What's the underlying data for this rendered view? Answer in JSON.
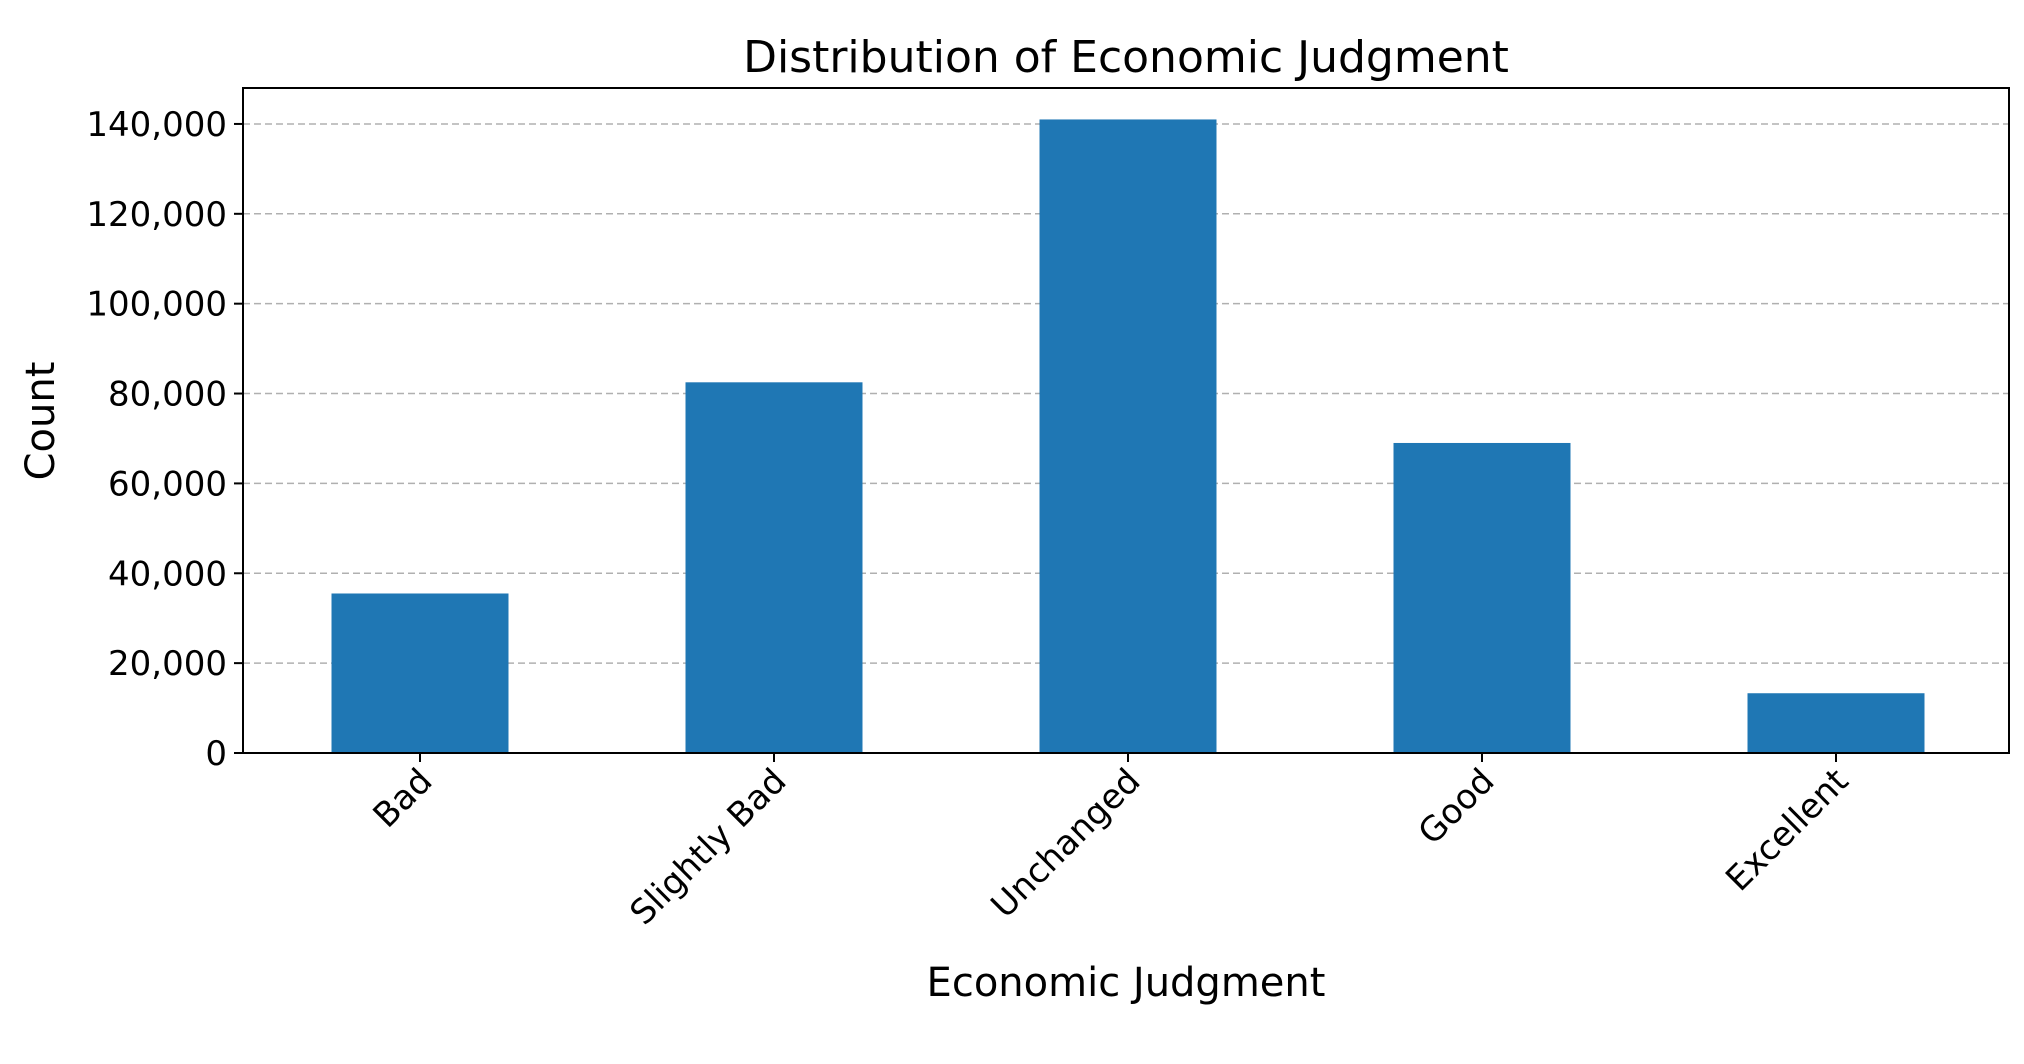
{
  "chart_data": {
    "type": "bar",
    "title": "Distribution of Economic Judgment",
    "xlabel": "Economic Judgment",
    "ylabel": "Count",
    "categories": [
      "Bad",
      "Slightly Bad",
      "Unchanged",
      "Good",
      "Excellent"
    ],
    "values": [
      35500,
      82500,
      141000,
      69000,
      13300
    ],
    "ylim": [
      0,
      148000
    ],
    "yticks": [
      0,
      20000,
      40000,
      60000,
      80000,
      100000,
      120000,
      140000
    ],
    "ytick_labels": [
      "0",
      "20,000",
      "40,000",
      "60,000",
      "80,000",
      "100,000",
      "120,000",
      "140,000"
    ],
    "grid": true,
    "bar_color": "#1f77b4"
  }
}
